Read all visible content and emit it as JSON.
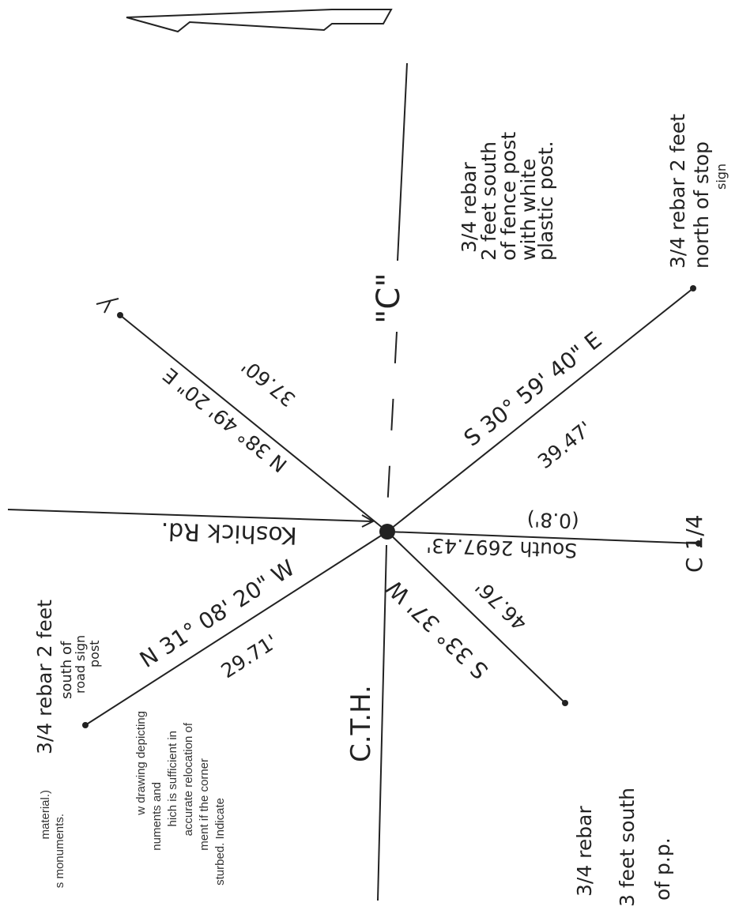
{
  "notes": [
    {
      "lines": [
        "3/4 rebar",
        "2 feet south",
        "of fence post",
        "with white",
        "plastic post."
      ]
    },
    {
      "lines": [
        "3/4 rebar 2 feet",
        "north of stop",
        "sign"
      ]
    },
    {
      "lines": [
        "3/4 rebar",
        "3 feet south",
        "of p.p."
      ]
    },
    {
      "lines": [
        "3/4 rebar 2 feet",
        "south of",
        "road sign",
        "post"
      ]
    }
  ],
  "corner_label": "C 1/4",
  "road_labels": [
    "\"C\"",
    "Koshick Rd.",
    "C.T.H."
  ],
  "ties": [
    {
      "bearing": "N 38° 49' 20\" E",
      "distance": "37.60'"
    },
    {
      "bearing": "S 30° 59' 40\" E",
      "distance": "39.47'"
    },
    {
      "bearing": "South 2697.43'",
      "distance": "(0.8')"
    },
    {
      "bearing": "S 33° 37' W",
      "distance": "46.76'"
    },
    {
      "bearing": "N 31° 08' 20\" W",
      "distance": "29.71'"
    }
  ],
  "printed_text": [
    "material.)",
    "s monuments.",
    "w drawing depicting",
    "numents and",
    "hich is sufficient in",
    "accurate relocation of",
    "ment if the corner",
    "sturbed. Indicate"
  ]
}
